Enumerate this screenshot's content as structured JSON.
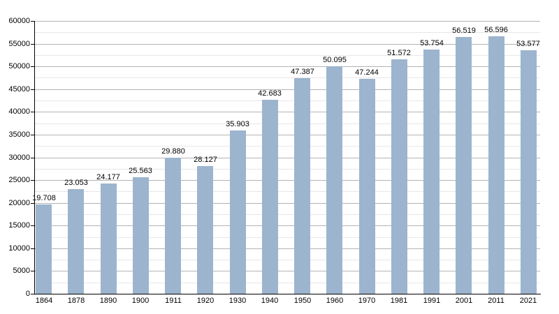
{
  "chart_data": {
    "type": "bar",
    "categories": [
      "1864",
      "1878",
      "1890",
      "1900",
      "1911",
      "1920",
      "1930",
      "1940",
      "1950",
      "1960",
      "1970",
      "1981",
      "1991",
      "2001",
      "2011",
      "2021"
    ],
    "values": [
      19708,
      23053,
      24177,
      25563,
      29880,
      28127,
      35903,
      42683,
      47387,
      50095,
      47244,
      51572,
      53754,
      56519,
      56596,
      53577
    ],
    "value_labels": [
      "19.708",
      "23.053",
      "24.177",
      "25.563",
      "29.880",
      "28.127",
      "35.903",
      "42.683",
      "47.387",
      "50.095",
      "47.244",
      "51.572",
      "53.754",
      "56.519",
      "56.596",
      "53.577"
    ],
    "xlabel": "",
    "ylabel": "",
    "ylim": [
      0,
      60000
    ],
    "y_axis": {
      "major_step": 5000,
      "minor_step": 2500,
      "tick_labels": [
        "0",
        "5000",
        "10000",
        "15000",
        "20000",
        "25000",
        "30000",
        "35000",
        "40000",
        "45000",
        "50000",
        "55000",
        "60000"
      ]
    },
    "grid": true,
    "legend_position": "none",
    "colors": {
      "bar": "#9cb4ce",
      "major_grid": "#b3b3b3",
      "minor_grid": "#e7e7e7",
      "axis": "#000000",
      "text": "#000000",
      "background": "#ffffff"
    }
  }
}
